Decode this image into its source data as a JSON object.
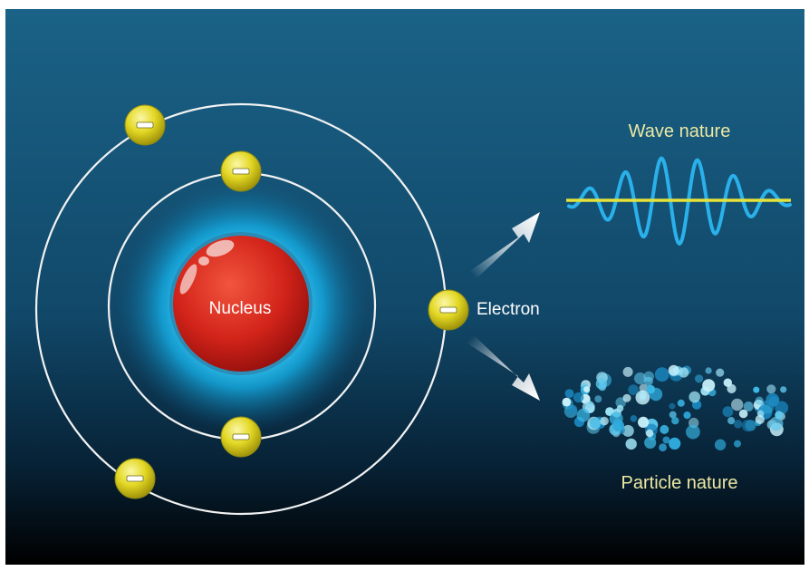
{
  "labels": {
    "nucleus": "Nucleus",
    "electron": "Electron",
    "wave_nature": "Wave nature",
    "particle_nature": "Particle nature",
    "electron_sign": "−"
  },
  "colors": {
    "background_top": "#175c82",
    "background_bottom": "#000000",
    "nucleus_red": "#d8261a",
    "glow_cyan": "#1fb6e6",
    "electron_yellow": "#e0d51e",
    "orbit_white": "#f2f2f2",
    "wave_cyan": "#2ab0ea",
    "axis_yellow": "#e6e23a",
    "caption_yellow": "#ece8a2"
  },
  "icons": {
    "electron": "electron-minus-icon",
    "arrow_up": "arrow-up-right-icon",
    "arrow_down": "arrow-down-right-icon"
  }
}
